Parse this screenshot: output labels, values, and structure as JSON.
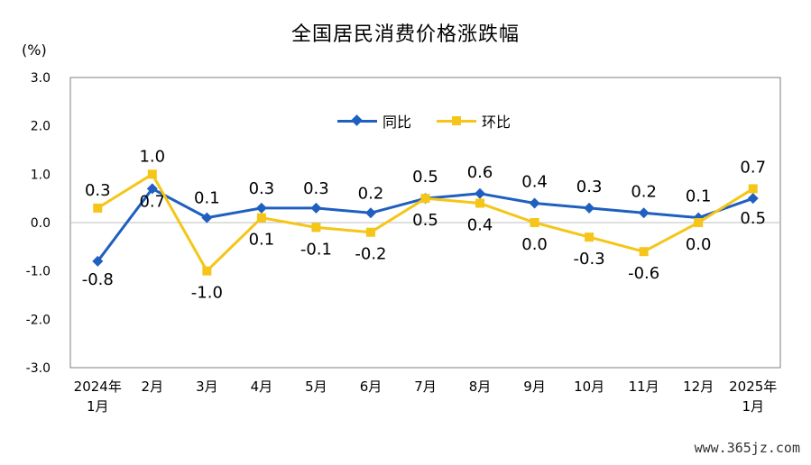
{
  "chart_data": {
    "type": "line",
    "title": "全国居民消费价格涨跌幅",
    "unit": "(%)",
    "categories": [
      [
        "2024年",
        "1月"
      ],
      [
        "2月"
      ],
      [
        "3月"
      ],
      [
        "4月"
      ],
      [
        "5月"
      ],
      [
        "6月"
      ],
      [
        "7月"
      ],
      [
        "8月"
      ],
      [
        "9月"
      ],
      [
        "10月"
      ],
      [
        "11月"
      ],
      [
        "12月"
      ],
      [
        "2025年",
        "1月"
      ]
    ],
    "series": [
      {
        "name": "同比",
        "color": "#1f5fbf",
        "marker": "diamond",
        "values": [
          -0.8,
          0.7,
          0.1,
          0.3,
          0.3,
          0.2,
          0.5,
          0.6,
          0.4,
          0.3,
          0.2,
          0.1,
          0.5
        ],
        "labels": [
          "-0.8",
          "0.7",
          "0.1",
          "0.3",
          "0.3",
          "0.2",
          "0.5",
          "0.6",
          "0.4",
          "0.3",
          "0.2",
          "0.1",
          "0.5"
        ]
      },
      {
        "name": "环比",
        "color": "#f5c518",
        "marker": "square",
        "values": [
          0.3,
          1.0,
          -1.0,
          0.1,
          -0.1,
          -0.2,
          0.5,
          0.4,
          0.0,
          -0.3,
          -0.6,
          0.0,
          0.7
        ],
        "labels": [
          "0.3",
          "1.0",
          "-1.0",
          "0.1",
          "-0.1",
          "-0.2",
          "0.5",
          "0.4",
          "0.0",
          "-0.3",
          "-0.6",
          "0.0",
          "0.7"
        ]
      }
    ],
    "yticks": [
      "3.0",
      "2.0",
      "1.0",
      "0.0",
      "-1.0",
      "-2.0",
      "-3.0"
    ],
    "ylim": [
      -3,
      3
    ],
    "grid": false,
    "legend_position": "top-center"
  },
  "watermark": "www.365jz.com"
}
